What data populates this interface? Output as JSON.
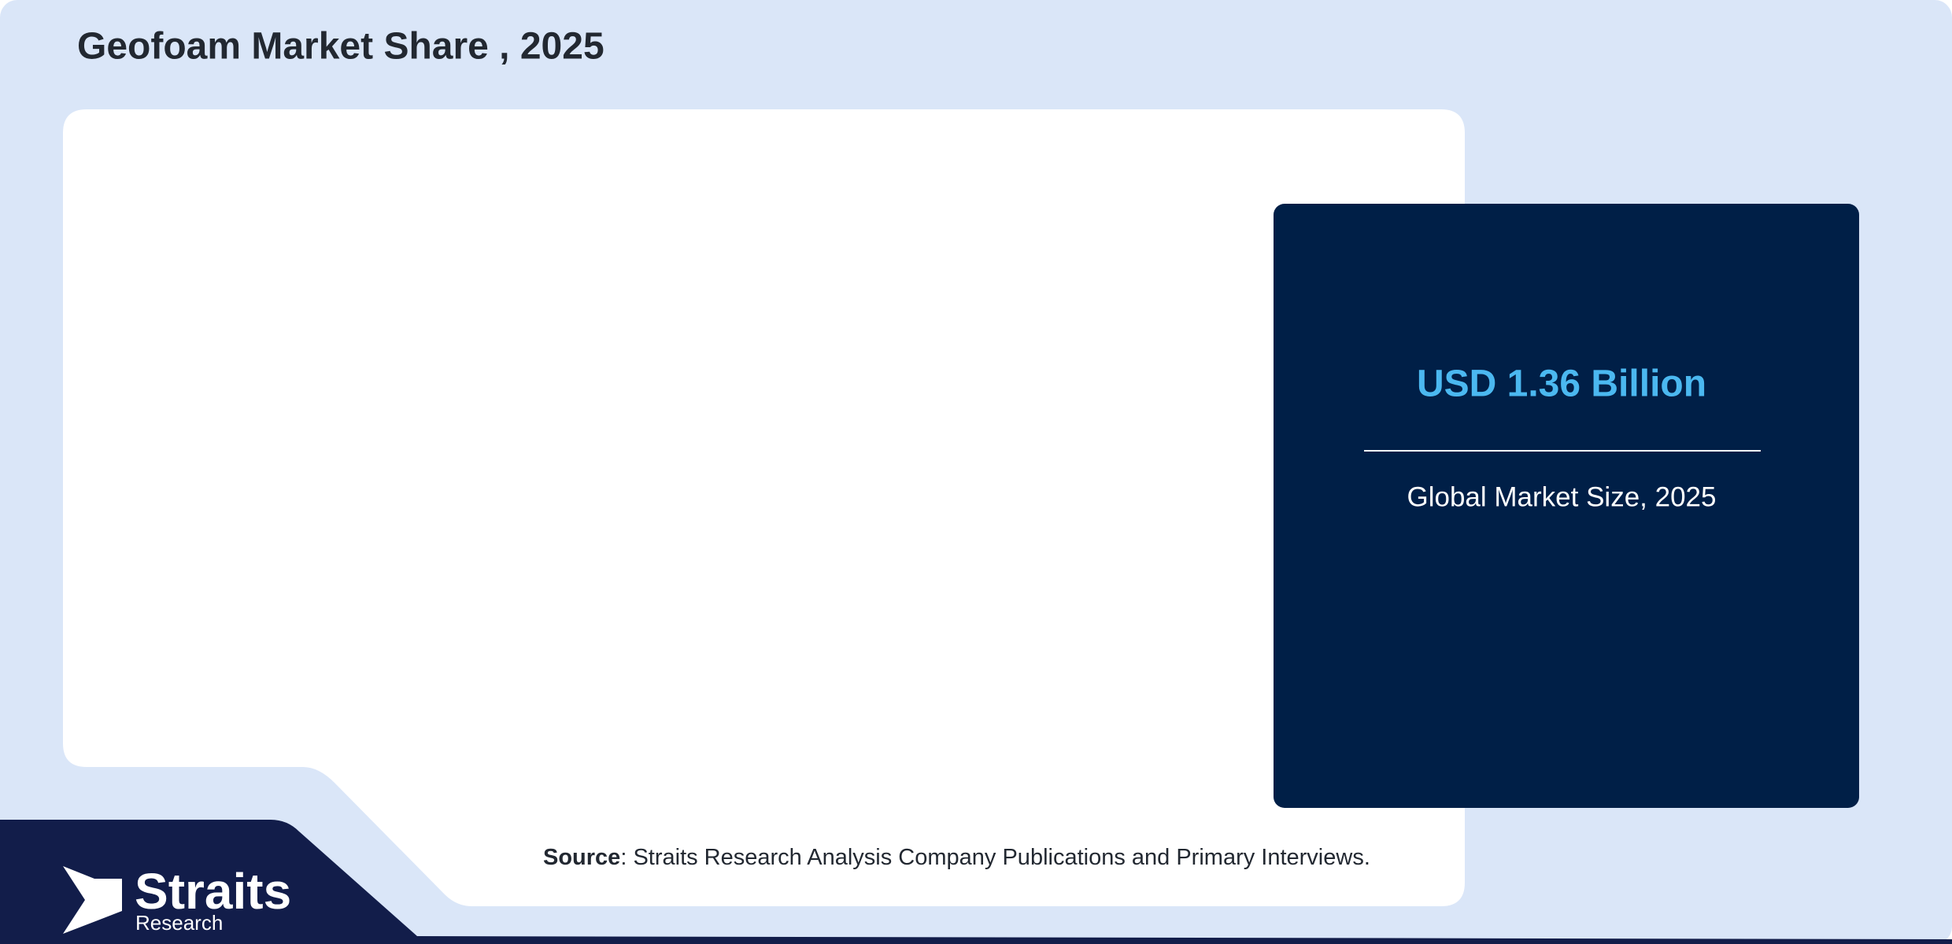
{
  "header": {
    "title": "Geofoam Market Share , 2025"
  },
  "card": {
    "value": "USD 1.36 Billion",
    "label": "Global Market Size, 2025"
  },
  "source": {
    "label": "Source",
    "text": ": Straits Research Analysis Company Publications and Primary Interviews."
  },
  "logo": {
    "name": "Straits",
    "sub": "Research"
  }
}
